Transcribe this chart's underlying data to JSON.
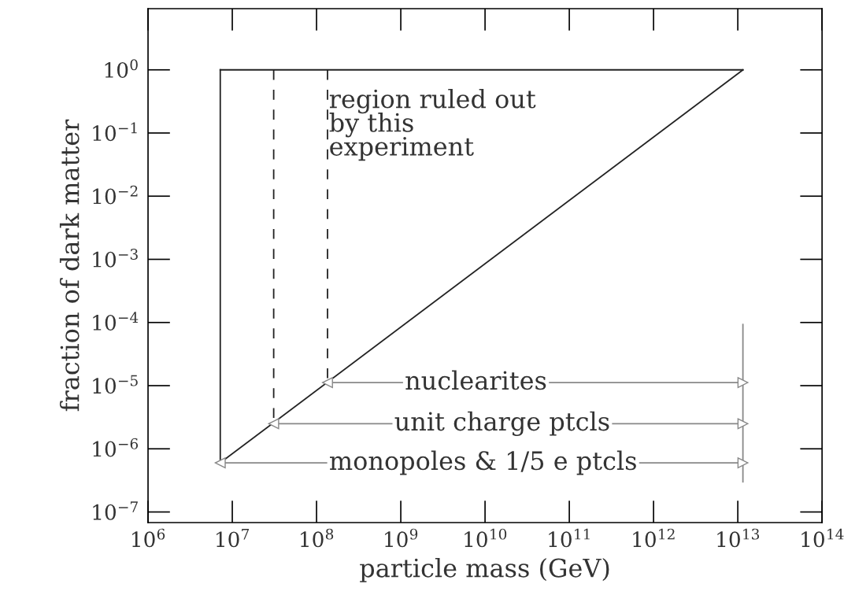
{
  "chart_data": {
    "type": "line",
    "xlabel": "particle mass (GeV)",
    "ylabel": "fraction of dark matter",
    "log": "xy",
    "xlim": [
      1000000,
      100000000000000
    ],
    "ylim": [
      6.8e-08,
      9.3
    ],
    "xticks": [
      {
        "value": 1000000,
        "label": "10$^{6}$"
      },
      {
        "value": 10000000,
        "label": "10$^{7}$"
      },
      {
        "value": 100000000,
        "label": "10$^{8}$"
      },
      {
        "value": 1000000000,
        "label": "10$^{9}$"
      },
      {
        "value": 10000000000,
        "label": "10$^{10}$"
      },
      {
        "value": 100000000000,
        "label": "10$^{11}$"
      },
      {
        "value": 1000000000000,
        "label": "10$^{12}$"
      },
      {
        "value": 10000000000000,
        "label": "10$^{13}$"
      },
      {
        "value": 100000000000000,
        "label": "10$^{14}$"
      }
    ],
    "yticks": [
      {
        "value": 1,
        "label": "10$^{0}$"
      },
      {
        "value": 0.1,
        "label": "10$^{−1}$"
      },
      {
        "value": 0.01,
        "label": "10$^{−2}$"
      },
      {
        "value": 0.001,
        "label": "10$^{−3}$"
      },
      {
        "value": 0.0001,
        "label": "10$^{−4}$"
      },
      {
        "value": 1e-05,
        "label": "10$^{−5}$"
      },
      {
        "value": 1e-06,
        "label": "10$^{−6}$"
      },
      {
        "value": 1e-07,
        "label": "10$^{−7}$"
      }
    ],
    "series": [
      {
        "color": "#222222",
        "line_style": "solid",
        "x": [
          7200000,
          7200000
        ],
        "values": [
          6e-07,
          1
        ]
      },
      {
        "color": "#222222",
        "line_style": "solid",
        "x": [
          7200000,
          11500000000000
        ],
        "values": [
          1,
          1
        ]
      },
      {
        "color": "#222222",
        "line_style": "solid",
        "x": [
          7200000,
          11500000000000
        ],
        "values": [
          6e-07,
          1
        ]
      },
      {
        "color": "#222222",
        "line_style": "dashed",
        "x": [
          31000000,
          31000000
        ],
        "values": [
          1,
          2.5e-06
        ]
      },
      {
        "color": "#222222",
        "line_style": "dashed",
        "x": [
          135000000,
          135000000
        ],
        "values": [
          1,
          1.12e-05
        ]
      },
      {
        "color": "#888888",
        "line_style": "solid",
        "x": [
          11500000000000,
          11500000000000
        ],
        "values": [
          9.3e-05,
          3e-07
        ]
      },
      {
        "color": "#888888",
        "line_style": "solid",
        "marker": "triangle",
        "x": [
          135000000,
          11500000000000
        ],
        "values": [
          1.12e-05,
          1.12e-05
        ]
      },
      {
        "color": "#888888",
        "line_style": "solid",
        "marker": "triangle",
        "x": [
          31000000,
          11500000000000
        ],
        "values": [
          2.5e-06,
          2.5e-06
        ]
      },
      {
        "color": "#888888",
        "line_style": "solid",
        "marker": "triangle",
        "x": [
          7200000,
          11500000000000
        ],
        "values": [
          6e-07,
          6e-07
        ]
      }
    ],
    "annotations": [
      {
        "text": "region ruled out\nby this\nexperiment",
        "x": 140000000,
        "y": 0.5
      },
      {
        "text": "nuclearites",
        "x": 7800000000,
        "y": 1.12e-05
      },
      {
        "text": "unit charge ptcls",
        "x": 16000000000,
        "y": 2.5e-06
      },
      {
        "text": "monopoles & 1/5 e ptcls",
        "x": 9500000000,
        "y": 6e-07
      }
    ]
  }
}
